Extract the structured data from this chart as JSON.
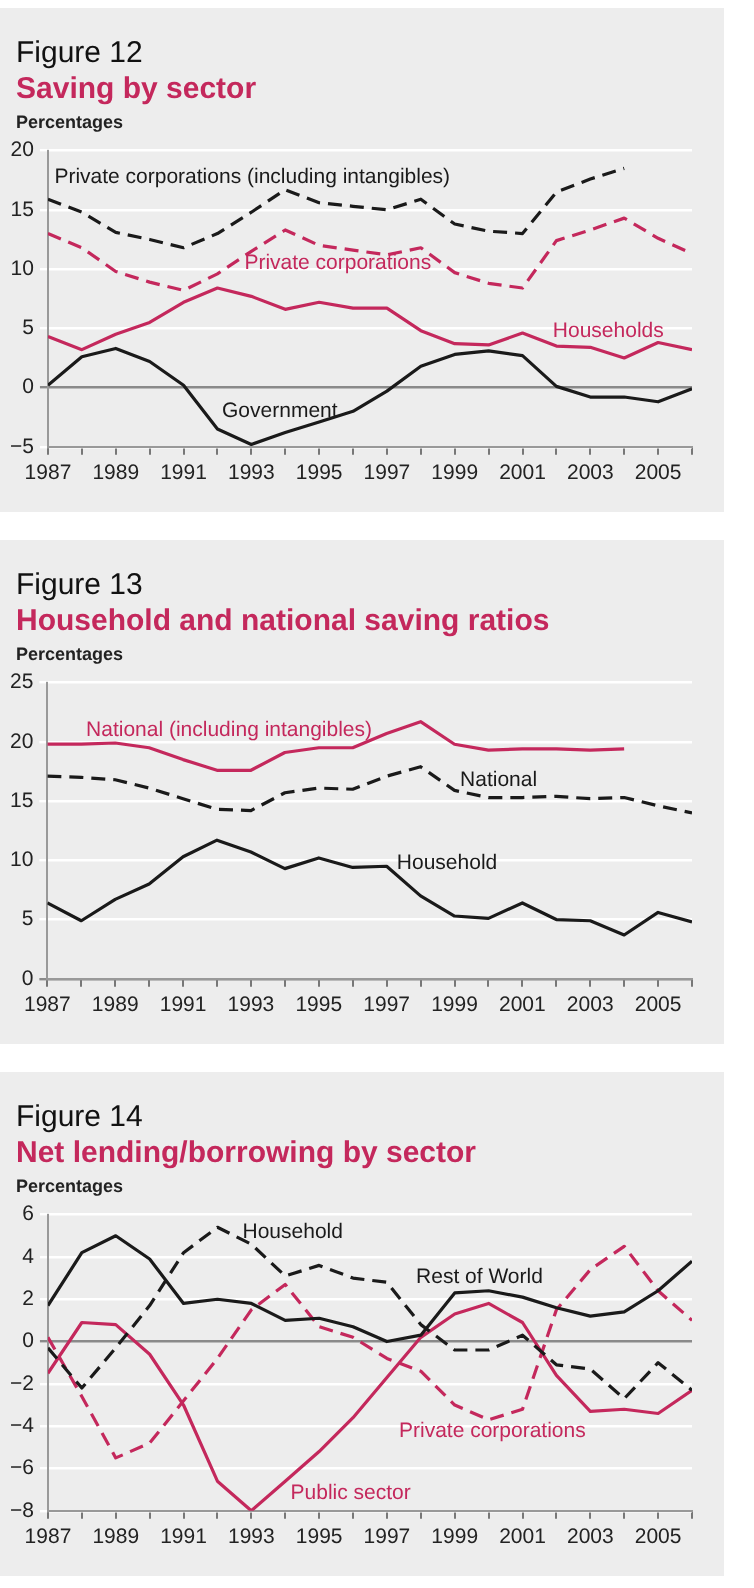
{
  "chart_data": [
    {
      "type": "line",
      "title": "Figure 12",
      "subtitle": "Saving by sector",
      "ylabel": "Percentages",
      "marker": "none",
      "grid": "y",
      "x": [
        1987,
        1988,
        1989,
        1990,
        1991,
        1992,
        1993,
        1994,
        1995,
        1996,
        1997,
        1998,
        1999,
        2000,
        2001,
        2002,
        2003,
        2004,
        2005,
        2006
      ],
      "xlim": [
        1987,
        2006
      ],
      "xticks": [
        1987,
        {
          "value": 1988,
          "label": null
        },
        1989,
        {
          "value": 1990,
          "label": null
        },
        1991,
        {
          "value": 1992,
          "label": null
        },
        1993,
        {
          "value": 1994,
          "label": null
        },
        1995,
        {
          "value": 1996,
          "label": null
        },
        1997,
        {
          "value": 1998,
          "label": null
        },
        1999,
        {
          "value": 2000,
          "label": null
        },
        2001,
        {
          "value": 2002,
          "label": null
        },
        2003,
        {
          "value": 2004,
          "label": null
        },
        2005,
        {
          "value": 2006,
          "label": null
        }
      ],
      "ylim": [
        -5,
        20
      ],
      "yticks": [
        -5,
        0,
        5,
        10,
        15,
        20
      ],
      "series": [
        {
          "name": "Private corporations (including intangibles)",
          "color": "#1a1a1a",
          "line_style": "dashed",
          "values": [
            15.9,
            14.8,
            13.1,
            12.5,
            11.8,
            13.0,
            14.8,
            16.7,
            15.6,
            15.3,
            15.0,
            15.9,
            13.8,
            13.2,
            13.0,
            16.5,
            17.6,
            18.5,
            null,
            null
          ]
        },
        {
          "name": "Private corporations",
          "color": "#c4285c",
          "line_style": "dashed",
          "values": [
            13.0,
            11.8,
            9.8,
            8.9,
            8.2,
            9.6,
            11.5,
            13.3,
            12.0,
            11.6,
            11.2,
            11.8,
            9.7,
            8.8,
            8.4,
            12.4,
            13.3,
            14.3,
            12.6,
            11.3
          ]
        },
        {
          "name": "Households",
          "color": "#c4285c",
          "line_style": "solid",
          "values": [
            4.3,
            3.2,
            4.5,
            5.5,
            7.2,
            8.4,
            7.7,
            6.6,
            7.2,
            6.7,
            6.7,
            4.8,
            3.7,
            3.6,
            4.6,
            3.5,
            3.4,
            2.5,
            3.8,
            3.2
          ]
        },
        {
          "name": "Government",
          "color": "#1a1a1a",
          "line_style": "solid",
          "values": [
            0.2,
            2.6,
            3.3,
            2.2,
            0.2,
            -3.5,
            -4.8,
            -3.8,
            -2.9,
            -2.0,
            -0.3,
            1.8,
            2.8,
            3.1,
            2.7,
            0.1,
            -0.8,
            -0.8,
            -1.2,
            -0.1
          ]
        }
      ]
    },
    {
      "type": "line",
      "title": "Figure 13",
      "subtitle": "Household and national saving ratios",
      "ylabel": "Percentages",
      "marker": "none",
      "grid": "y",
      "x": [
        1987,
        1988,
        1989,
        1990,
        1991,
        1992,
        1993,
        1994,
        1995,
        1996,
        1997,
        1998,
        1999,
        2000,
        2001,
        2002,
        2003,
        2004,
        2005,
        2006
      ],
      "xlim": [
        1987,
        2006
      ],
      "xticks": [
        1987,
        {
          "value": 1988,
          "label": null
        },
        1989,
        {
          "value": 1990,
          "label": null
        },
        1991,
        {
          "value": 1992,
          "label": null
        },
        1993,
        {
          "value": 1994,
          "label": null
        },
        1995,
        {
          "value": 1996,
          "label": null
        },
        1997,
        {
          "value": 1998,
          "label": null
        },
        1999,
        {
          "value": 2000,
          "label": null
        },
        2001,
        {
          "value": 2002,
          "label": null
        },
        2003,
        {
          "value": 2004,
          "label": null
        },
        2005,
        {
          "value": 2006,
          "label": null
        }
      ],
      "ylim": [
        0,
        25
      ],
      "yticks": [
        0,
        5,
        10,
        15,
        20,
        25
      ],
      "series": [
        {
          "name": "National (including intangibles)",
          "color": "#c4285c",
          "line_style": "solid",
          "values": [
            19.8,
            19.8,
            19.9,
            19.5,
            18.5,
            17.6,
            17.6,
            19.1,
            19.5,
            19.5,
            20.7,
            21.7,
            19.8,
            19.3,
            19.4,
            19.4,
            19.3,
            19.4,
            null,
            null
          ]
        },
        {
          "name": "National",
          "color": "#1a1a1a",
          "line_style": "dashed",
          "values": [
            17.1,
            17.0,
            16.8,
            16.1,
            15.2,
            14.3,
            14.2,
            15.7,
            16.1,
            16.0,
            17.1,
            17.9,
            15.9,
            15.3,
            15.3,
            15.4,
            15.2,
            15.3,
            14.6,
            14.0
          ]
        },
        {
          "name": "Household",
          "color": "#1a1a1a",
          "line_style": "solid",
          "values": [
            6.4,
            4.9,
            6.7,
            8.0,
            10.3,
            11.7,
            10.7,
            9.3,
            10.2,
            9.4,
            9.5,
            7.0,
            5.3,
            5.1,
            6.4,
            5.0,
            4.9,
            3.7,
            5.6,
            4.8
          ]
        }
      ]
    },
    {
      "type": "line",
      "title": "Figure 14",
      "subtitle": "Net lending/borrowing by sector",
      "ylabel": "Percentages",
      "marker": "none",
      "grid": "y",
      "x": [
        1987,
        1988,
        1989,
        1990,
        1991,
        1992,
        1993,
        1994,
        1995,
        1996,
        1997,
        1998,
        1999,
        2000,
        2001,
        2002,
        2003,
        2004,
        2005,
        2006
      ],
      "xlim": [
        1987,
        2006
      ],
      "xticks": [
        1987,
        {
          "value": 1988,
          "label": null
        },
        1989,
        {
          "value": 1990,
          "label": null
        },
        1991,
        {
          "value": 1992,
          "label": null
        },
        1993,
        {
          "value": 1994,
          "label": null
        },
        1995,
        {
          "value": 1996,
          "label": null
        },
        1997,
        {
          "value": 1998,
          "label": null
        },
        1999,
        {
          "value": 2000,
          "label": null
        },
        2001,
        {
          "value": 2002,
          "label": null
        },
        2003,
        {
          "value": 2004,
          "label": null
        },
        2005,
        {
          "value": 2006,
          "label": null
        }
      ],
      "ylim": [
        -8,
        6
      ],
      "yticks": [
        -8,
        -6,
        -4,
        -2,
        0,
        2,
        4,
        6
      ],
      "series": [
        {
          "name": "Household",
          "color": "#1a1a1a",
          "line_style": "dashed",
          "values": [
            -0.3,
            -2.2,
            -0.3,
            1.7,
            4.2,
            5.4,
            4.6,
            3.1,
            3.6,
            3.0,
            2.8,
            0.8,
            -0.4,
            -0.4,
            0.3,
            -1.1,
            -1.3,
            -2.7,
            -1.0,
            -2.3
          ]
        },
        {
          "name": "Rest of World",
          "color": "#1a1a1a",
          "line_style": "solid",
          "values": [
            1.7,
            4.2,
            5.0,
            3.9,
            1.8,
            2.0,
            1.8,
            1.0,
            1.1,
            0.7,
            0.0,
            0.3,
            2.3,
            2.4,
            2.1,
            1.6,
            1.2,
            1.4,
            2.4,
            3.8
          ]
        },
        {
          "name": "Private corporations",
          "color": "#c4285c",
          "line_style": "dashed",
          "values": [
            0.2,
            -2.6,
            -5.5,
            -4.8,
            -2.8,
            -0.8,
            1.5,
            2.7,
            0.7,
            0.2,
            -0.8,
            -1.4,
            -3.0,
            -3.7,
            -3.2,
            1.5,
            3.4,
            4.5,
            2.4,
            1.0
          ]
        },
        {
          "name": "Public sector",
          "color": "#c4285c",
          "line_style": "solid",
          "values": [
            -1.5,
            0.9,
            0.8,
            -0.6,
            -3.0,
            -6.6,
            -8.0,
            -6.6,
            -5.2,
            -3.6,
            -1.7,
            0.2,
            1.3,
            1.8,
            0.9,
            -1.6,
            -3.3,
            -3.2,
            -3.4,
            -2.3
          ]
        }
      ]
    }
  ]
}
